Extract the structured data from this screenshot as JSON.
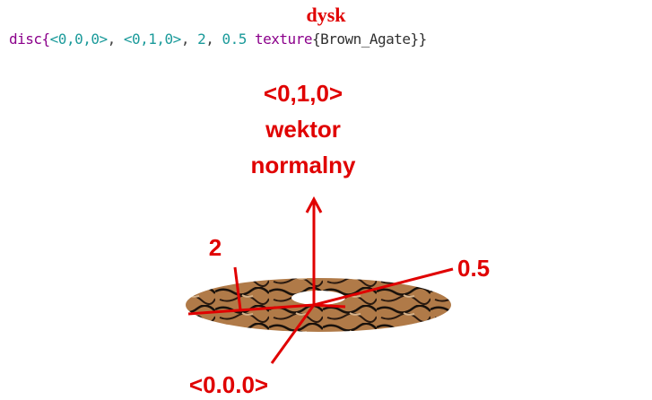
{
  "title": "dysk",
  "code": [
    "disc{",
    "<0,0,0>",
    ", ",
    "<0,1,0>",
    ", ",
    "2",
    ", ",
    "0.5",
    " texture",
    "{Brown_Agate}}"
  ],
  "labels": {
    "normal_vector": "<0,1,0>",
    "normal_line1": "wektor",
    "normal_line2": "normalny",
    "radius": "2",
    "hole_radius": "0.5",
    "center": "<0.0.0>"
  }
}
